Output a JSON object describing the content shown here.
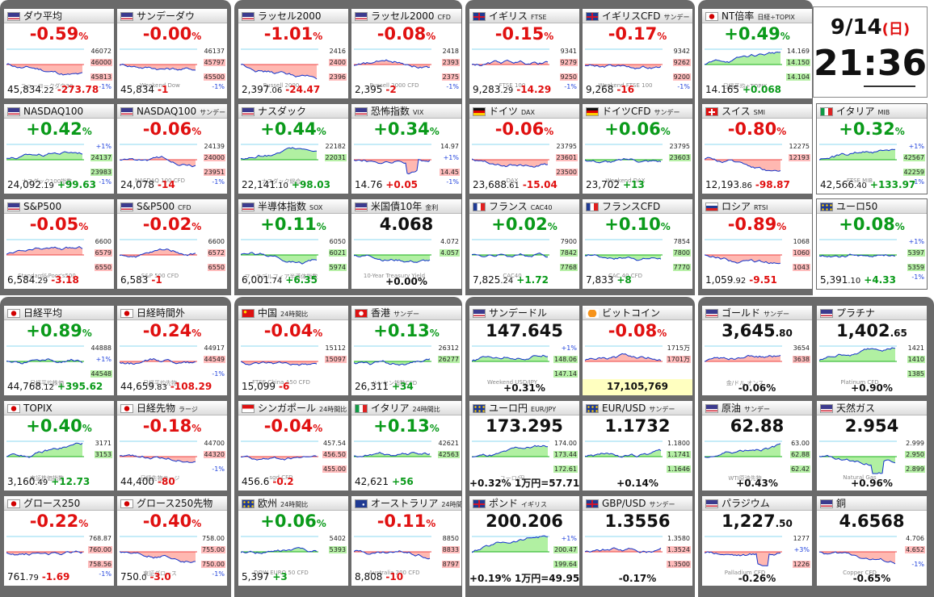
{
  "clock": {
    "date": "9/14",
    "weekday": "(日)",
    "time": "21:36"
  },
  "tiles": [
    {
      "name": "ダウ平均",
      "sub": "",
      "flag": "us",
      "big": "-0.59",
      "unit": "%",
      "dir": "dn",
      "last": "45,834",
      "last_frac": ".22",
      "change": "-273.78",
      "chdir": "dn",
      "labels": [
        "46072",
        "46000",
        "45813"
      ],
      "mlabel": "-1%",
      "wm": "ニューヨークダウ30",
      "trend": "down"
    },
    {
      "name": "サンデーダウ",
      "sub": "",
      "flag": "us",
      "big": "-0.00",
      "unit": "%",
      "dir": "dn",
      "last": "45,834",
      "last_frac": "",
      "change": "-1",
      "chdir": "dn",
      "labels": [
        "46137",
        "45797",
        "45500"
      ],
      "mlabel": "-1%",
      "wm": "Weekend Dow",
      "trend": "flat"
    },
    {
      "name": "ラッセル2000",
      "sub": "",
      "flag": "us",
      "big": "-1.01",
      "unit": "%",
      "dir": "dn",
      "last": "2,397",
      "last_frac": ".06",
      "change": "-24.47",
      "chdir": "dn",
      "labels": [
        "2416",
        "2400",
        "2396"
      ],
      "mlabel": "",
      "wm": "Russell 2000",
      "trend": "down"
    },
    {
      "name": "ラッセル2000",
      "sub": "CFD",
      "flag": "us",
      "big": "-0.08",
      "unit": "%",
      "dir": "dn",
      "last": "2,395",
      "last_frac": "",
      "change": "-2",
      "chdir": "dn",
      "labels": [
        "2418",
        "2393",
        "2375"
      ],
      "mlabel": "-1%",
      "wm": "Russell 2000 CFD",
      "trend": "flat"
    },
    {
      "name": "イギリス",
      "sub": "FTSE",
      "flag": "uk",
      "big": "-0.15",
      "unit": "%",
      "dir": "dn",
      "last": "9,283",
      "last_frac": ".29",
      "change": "-14.29",
      "chdir": "dn",
      "labels": [
        "9341",
        "9279",
        "9250"
      ],
      "mlabel": "-1%",
      "wm": "FTSE 100",
      "trend": "flat"
    },
    {
      "name": "イギリスCFD",
      "sub": "サンデー",
      "flag": "uk",
      "big": "-0.17",
      "unit": "%",
      "dir": "dn",
      "last": "9,268",
      "last_frac": "",
      "change": "-16",
      "chdir": "dn",
      "labels": [
        "9342",
        "9262",
        "9200"
      ],
      "mlabel": "-1%",
      "wm": "Weekend FTSE 100",
      "trend": "flat"
    },
    {
      "name": "NT倍率",
      "sub": "日経÷TOPIX",
      "flag": "jp",
      "big": "+0.49",
      "unit": "%",
      "dir": "up",
      "last": "14.165",
      "last_frac": "",
      "change": "+0.068",
      "chdir": "up",
      "labels": [
        "14.169",
        "14.150",
        "14.104"
      ],
      "mlabel": "",
      "wm": "日経平均÷TOPIX",
      "trend": "up"
    },
    {
      "name": "NASDAQ100",
      "sub": "",
      "flag": "us",
      "big": "+0.42",
      "unit": "%",
      "dir": "up",
      "last": "24,092",
      "last_frac": ".19",
      "change": "+99.63",
      "chdir": "up",
      "labels": [
        "+1%",
        "24137",
        "23983"
      ],
      "mlabel": "-1%",
      "wm": "ナスダック100指数",
      "trend": "up"
    },
    {
      "name": "NASDAQ100",
      "sub": "サンデー",
      "flag": "us",
      "big": "-0.06",
      "unit": "%",
      "dir": "dn",
      "last": "24,078",
      "last_frac": "",
      "change": "-14",
      "chdir": "dn",
      "labels": [
        "24139",
        "24000",
        "23951"
      ],
      "mlabel": "-1%",
      "wm": "NASDAQ 100 CFD",
      "trend": "flat"
    },
    {
      "name": "ナスダック",
      "sub": "",
      "flag": "us",
      "big": "+0.44",
      "unit": "%",
      "dir": "up",
      "last": "22,141",
      "last_frac": ".10",
      "change": "+98.03",
      "chdir": "up",
      "labels": [
        "22182",
        "22031",
        ""
      ],
      "mlabel": "",
      "wm": "ナスダック総合",
      "trend": "up"
    },
    {
      "name": "恐怖指数",
      "sub": "VIX",
      "flag": "us",
      "big": "+0.34",
      "unit": "%",
      "dir": "up",
      "last": "14.76",
      "last_frac": "",
      "change": "+0.05",
      "chdir": "dn",
      "labels": [
        "14.97",
        "+1%",
        "14.45"
      ],
      "mlabel": "-1%",
      "wm": "",
      "trend": "spike"
    },
    {
      "name": "ドイツ",
      "sub": "DAX",
      "flag": "de",
      "big": "-0.06",
      "unit": "%",
      "dir": "dn",
      "last": "23,688",
      "last_frac": ".61",
      "change": "-15.04",
      "chdir": "dn",
      "labels": [
        "23795",
        "23601",
        "23500"
      ],
      "mlabel": "",
      "wm": "DAX",
      "trend": "flat"
    },
    {
      "name": "ドイツCFD",
      "sub": "サンデー",
      "flag": "de",
      "big": "+0.06",
      "unit": "%",
      "dir": "up",
      "last": "23,702",
      "last_frac": "",
      "change": "+13",
      "chdir": "up",
      "labels": [
        "23795",
        "23603",
        ""
      ],
      "mlabel": "",
      "wm": "Weekend DAX",
      "trend": "flat"
    },
    {
      "name": "スイス",
      "sub": "SMI",
      "flag": "ch",
      "big": "-0.80",
      "unit": "%",
      "dir": "dn",
      "last": "12,193",
      "last_frac": ".86",
      "change": "-98.87",
      "chdir": "dn",
      "labels": [
        "12275",
        "12193",
        ""
      ],
      "mlabel": "",
      "wm": "",
      "trend": "down"
    },
    {
      "name": "イタリア",
      "sub": "MIB",
      "flag": "it",
      "big": "+0.32",
      "unit": "%",
      "dir": "up",
      "last": "42,566",
      "last_frac": ".40",
      "change": "+133.97",
      "chdir": "up",
      "labels": [
        "+1%",
        "42567",
        "42259"
      ],
      "mlabel": "-1%",
      "wm": "FTSE MIB",
      "trend": "up"
    },
    {
      "name": "S&P500",
      "sub": "",
      "flag": "us",
      "big": "-0.05",
      "unit": "%",
      "dir": "dn",
      "last": "6,584",
      "last_frac": ".29",
      "change": "-3.18",
      "chdir": "dn",
      "labels": [
        "6600",
        "6579",
        "6550"
      ],
      "mlabel": "",
      "wm": "Standard&Poor's500",
      "trend": "flat"
    },
    {
      "name": "S&P500",
      "sub": "CFD",
      "flag": "us",
      "big": "-0.02",
      "unit": "%",
      "dir": "dn",
      "last": "6,583",
      "last_frac": "",
      "change": "-1",
      "chdir": "dn",
      "labels": [
        "6600",
        "6572",
        "6550"
      ],
      "mlabel": "",
      "wm": "S&P 500 CFD",
      "trend": "flat"
    },
    {
      "name": "半導体指数",
      "sub": "SOX",
      "flag": "us",
      "big": "+0.11",
      "unit": "%",
      "dir": "up",
      "last": "6,001",
      "last_frac": ".74",
      "change": "+6.35",
      "chdir": "up",
      "labels": [
        "6050",
        "6021",
        "5974"
      ],
      "mlabel": "",
      "wm": "フィラデルフィア半導体指数",
      "trend": "flat"
    },
    {
      "name": "米国債10年",
      "sub": "金利",
      "flag": "us",
      "big": "4.068",
      "unit": "",
      "dir": "blk",
      "last": "",
      "last_frac": "",
      "change": "+0.00%",
      "chdir": "up",
      "labels": [
        "4.072",
        "4.057",
        ""
      ],
      "mlabel": "",
      "wm": "10-Year Treasury Yield",
      "trend": "flat"
    },
    {
      "name": "フランス",
      "sub": "CAC40",
      "flag": "fr",
      "big": "+0.02",
      "unit": "%",
      "dir": "up",
      "last": "7,825",
      "last_frac": ".24",
      "change": "+1.72",
      "chdir": "up",
      "labels": [
        "7900",
        "7842",
        "7768"
      ],
      "mlabel": "",
      "wm": "CAC40",
      "trend": "flat"
    },
    {
      "name": "フランスCFD",
      "sub": "",
      "flag": "fr",
      "big": "+0.10",
      "unit": "%",
      "dir": "up",
      "last": "7,833",
      "last_frac": "",
      "change": "+8",
      "chdir": "up",
      "labels": [
        "7854",
        "7800",
        "7770"
      ],
      "mlabel": "",
      "wm": "CAC 40 CFD",
      "trend": "flat"
    },
    {
      "name": "ロシア",
      "sub": "RTSI",
      "flag": "ru",
      "big": "-0.89",
      "unit": "%",
      "dir": "dn",
      "last": "1,059",
      "last_frac": ".92",
      "change": "-9.51",
      "chdir": "dn",
      "labels": [
        "1068",
        "1060",
        "1043"
      ],
      "mlabel": "",
      "wm": "",
      "trend": "down"
    },
    {
      "name": "ユーロ50",
      "sub": "",
      "flag": "eu",
      "big": "+0.08",
      "unit": "%",
      "dir": "up",
      "last": "5,391",
      "last_frac": ".10",
      "change": "+4.33",
      "chdir": "up",
      "labels": [
        "+1%",
        "5397",
        "5359"
      ],
      "mlabel": "-1%",
      "wm": "",
      "trend": "flat"
    },
    {
      "name": "日経平均",
      "sub": "",
      "flag": "jp",
      "big": "+0.89",
      "unit": "%",
      "dir": "up",
      "last": "44,768",
      "last_frac": ".12",
      "change": "+395.62",
      "chdir": "up",
      "labels": [
        "44888",
        "+1%",
        "44548"
      ],
      "mlabel": "",
      "wm": "日経平均株価",
      "trend": "up"
    },
    {
      "name": "日経時間外",
      "sub": "",
      "flag": "jp",
      "big": "-0.24",
      "unit": "%",
      "dir": "dn",
      "last": "44,659",
      "last_frac": ".83",
      "change": "-108.29",
      "chdir": "dn",
      "labels": [
        "44917",
        "44549",
        "-1%"
      ],
      "mlabel": "",
      "wm": "日経平均先物",
      "trend": "flat"
    },
    {
      "name": "中国",
      "sub": "24時間比",
      "flag": "cn",
      "big": "-0.04",
      "unit": "%",
      "dir": "dn",
      "last": "15,099",
      "last_frac": "",
      "change": "-6",
      "chdir": "dn",
      "labels": [
        "15112",
        "15097",
        ""
      ],
      "mlabel": "",
      "wm": "FTSE China A50 CFD",
      "trend": "flat"
    },
    {
      "name": "香港",
      "sub": "サンデー",
      "flag": "hk",
      "big": "+0.13",
      "unit": "%",
      "dir": "up",
      "last": "26,311",
      "last_frac": "",
      "change": "+34",
      "chdir": "up",
      "labels": [
        "26312",
        "26277",
        ""
      ],
      "mlabel": "",
      "wm": "ハンセン指数CFD",
      "trend": "flat"
    },
    {
      "name": "サンデードル",
      "sub": "",
      "flag": "us",
      "big": "147.645",
      "unit": "",
      "dir": "blk",
      "last": "",
      "last_frac": "",
      "change": "+0.31%",
      "chdir": "up",
      "labels": [
        "+1%",
        "148.06",
        "147.14"
      ],
      "mlabel": "",
      "wm": "Weekend USD/JPY",
      "trend": "up"
    },
    {
      "name": "ビットコイン",
      "sub": "",
      "flag": "btc",
      "big": "-0.08",
      "unit": "%",
      "dir": "dn",
      "last": "17,105,769",
      "last_frac": "",
      "change": "",
      "chdir": "dn",
      "labels": [
        "1715万",
        "1701万",
        ""
      ],
      "mlabel": "",
      "wm": "CRYPTO BTC/JPY",
      "trend": "flat"
    },
    {
      "name": "ゴールド",
      "sub": "サンデー",
      "flag": "us",
      "big": "3,645",
      "unit": ".80",
      "dir": "blk",
      "last": "",
      "last_frac": "",
      "change": "-0.06%",
      "chdir": "dn",
      "labels": [
        "3654",
        "3638",
        ""
      ],
      "mlabel": "",
      "wm": "金/ドル オンス",
      "trend": "flat"
    },
    {
      "name": "プラチナ",
      "sub": "",
      "flag": "us",
      "big": "1,402",
      "unit": ".65",
      "dir": "blk",
      "last": "",
      "last_frac": "",
      "change": "+0.90%",
      "chdir": "up",
      "labels": [
        "1421",
        "1410",
        "1385"
      ],
      "mlabel": "",
      "wm": "Platinum CFD",
      "trend": "up"
    },
    {
      "name": "TOPIX",
      "sub": "",
      "flag": "jp",
      "big": "+0.40",
      "unit": "%",
      "dir": "up",
      "last": "3,160",
      "last_frac": ".49",
      "change": "+12.73",
      "chdir": "up",
      "labels": [
        "3171",
        "3153",
        ""
      ],
      "mlabel": "",
      "wm": "東証株価指数",
      "trend": "up"
    },
    {
      "name": "日経先物",
      "sub": "ラージ",
      "flag": "jp",
      "big": "-0.18",
      "unit": "%",
      "dir": "dn",
      "last": "44,400",
      "last_frac": "",
      "change": "-80",
      "chdir": "dn",
      "labels": [
        "44700",
        "44320",
        "-1%"
      ],
      "mlabel": "",
      "wm": "日経先物ラージ",
      "trend": "flat"
    },
    {
      "name": "シンガポール",
      "sub": "24時間比",
      "flag": "sg",
      "big": "-0.04",
      "unit": "%",
      "dir": "dn",
      "last": "456.6",
      "last_frac": "",
      "change": "-0.2",
      "chdir": "dn",
      "labels": [
        "457.54",
        "456.50",
        "455.00"
      ],
      "mlabel": "",
      "wm": "sgd CFD",
      "trend": "flat"
    },
    {
      "name": "イタリア",
      "sub": "24時間比",
      "flag": "it",
      "big": "+0.13",
      "unit": "%",
      "dir": "up",
      "last": "42,621",
      "last_frac": "",
      "change": "+56",
      "chdir": "up",
      "labels": [
        "42621",
        "42563",
        ""
      ],
      "mlabel": "",
      "wm": "",
      "trend": "flat"
    },
    {
      "name": "ユーロ円",
      "sub": "EUR/JPY",
      "flag": "eu",
      "big": "173.295",
      "unit": "",
      "dir": "blk",
      "last": "",
      "last_frac": "",
      "change": "+0.32% 1万円=57.71",
      "chdir": "up",
      "labels": [
        "174.00",
        "173.44",
        "172.61"
      ],
      "mlabel": "",
      "wm": "ユーロ/円",
      "trend": "up"
    },
    {
      "name": "EUR/USD",
      "sub": "サンデー",
      "flag": "eu",
      "big": "1.1732",
      "unit": "",
      "dir": "blk",
      "last": "",
      "last_frac": "",
      "change": "+0.14%",
      "chdir": "up",
      "labels": [
        "1.1800",
        "1.1741",
        "1.1646"
      ],
      "mlabel": "",
      "wm": "",
      "trend": "flat"
    },
    {
      "name": "原油",
      "sub": "サンデー",
      "flag": "us",
      "big": "62.88",
      "unit": "",
      "dir": "blk",
      "last": "",
      "last_frac": "",
      "change": "+0.43%",
      "chdir": "up",
      "labels": [
        "63.00",
        "62.88",
        "62.42"
      ],
      "mlabel": "",
      "wm": "WTI原油先物",
      "trend": "up"
    },
    {
      "name": "天然ガス",
      "sub": "",
      "flag": "us",
      "big": "2.954",
      "unit": "",
      "dir": "blk",
      "last": "",
      "last_frac": "",
      "change": "+0.96%",
      "chdir": "up",
      "labels": [
        "2.999",
        "2.950",
        "2.899"
      ],
      "mlabel": "",
      "wm": "Natural Gas",
      "trend": "spike"
    },
    {
      "name": "グロース250",
      "sub": "",
      "flag": "jp",
      "big": "-0.22",
      "unit": "%",
      "dir": "dn",
      "last": "761",
      "last_frac": ".79",
      "change": "-1.69",
      "chdir": "dn",
      "labels": [
        "768.87",
        "760.00",
        "758.56"
      ],
      "mlabel": "-1%",
      "wm": "",
      "trend": "flat"
    },
    {
      "name": "グロース250先物",
      "sub": "",
      "flag": "jp",
      "big": "-0.40",
      "unit": "%",
      "dir": "dn",
      "last": "750",
      "last_frac": ".0",
      "change": "-3.0",
      "chdir": "dn",
      "labels": [
        "758.00",
        "755.00",
        "750.00"
      ],
      "mlabel": "-1%",
      "wm": "東証グロース",
      "trend": "flat"
    },
    {
      "name": "欧州",
      "sub": "24時間比",
      "flag": "eu",
      "big": "+0.06",
      "unit": "%",
      "dir": "up",
      "last": "5,397",
      "last_frac": "",
      "change": "+3",
      "chdir": "up",
      "labels": [
        "5402",
        "5393",
        ""
      ],
      "mlabel": "",
      "wm": "DOW EURO 50 CFD",
      "trend": "flat"
    },
    {
      "name": "オーストラリア",
      "sub": "24時間比",
      "flag": "au",
      "big": "-0.11",
      "unit": "%",
      "dir": "dn",
      "last": "8,808",
      "last_frac": "",
      "change": "-10",
      "chdir": "dn",
      "labels": [
        "8850",
        "8833",
        "8797"
      ],
      "mlabel": "",
      "wm": "Australia 200 CFD",
      "trend": "flat"
    },
    {
      "name": "ポンド",
      "sub": "イギリス",
      "flag": "uk",
      "big": "200.206",
      "unit": "",
      "dir": "blk",
      "last": "",
      "last_frac": "",
      "change": "+0.19% 1万円=49.95",
      "chdir": "up",
      "labels": [
        "+1%",
        "200.47",
        "199.64"
      ],
      "mlabel": "",
      "wm": "",
      "trend": "up"
    },
    {
      "name": "GBP/USD",
      "sub": "サンデー",
      "flag": "uk",
      "big": "1.3556",
      "unit": "",
      "dir": "blk",
      "last": "",
      "last_frac": "",
      "change": "-0.17%",
      "chdir": "dn",
      "labels": [
        "1.3580",
        "1.3524",
        "1.3500"
      ],
      "mlabel": "",
      "wm": "",
      "trend": "flat"
    },
    {
      "name": "パラジウム",
      "sub": "",
      "flag": "us",
      "big": "1,227",
      "unit": ".50",
      "dir": "blk",
      "last": "",
      "last_frac": "",
      "change": "-0.26%",
      "chdir": "dn",
      "labels": [
        "1277",
        "+3%",
        "1226"
      ],
      "mlabel": "",
      "wm": "Palladium CFD",
      "trend": "spike"
    },
    {
      "name": "銅",
      "sub": "",
      "flag": "us",
      "big": "4.6568",
      "unit": "",
      "dir": "blk",
      "last": "",
      "last_frac": "",
      "change": "-0.65%",
      "chdir": "dn",
      "labels": [
        "4.706",
        "4.652",
        "-1%"
      ],
      "mlabel": "",
      "wm": "Copper CFD",
      "trend": "down"
    }
  ]
}
